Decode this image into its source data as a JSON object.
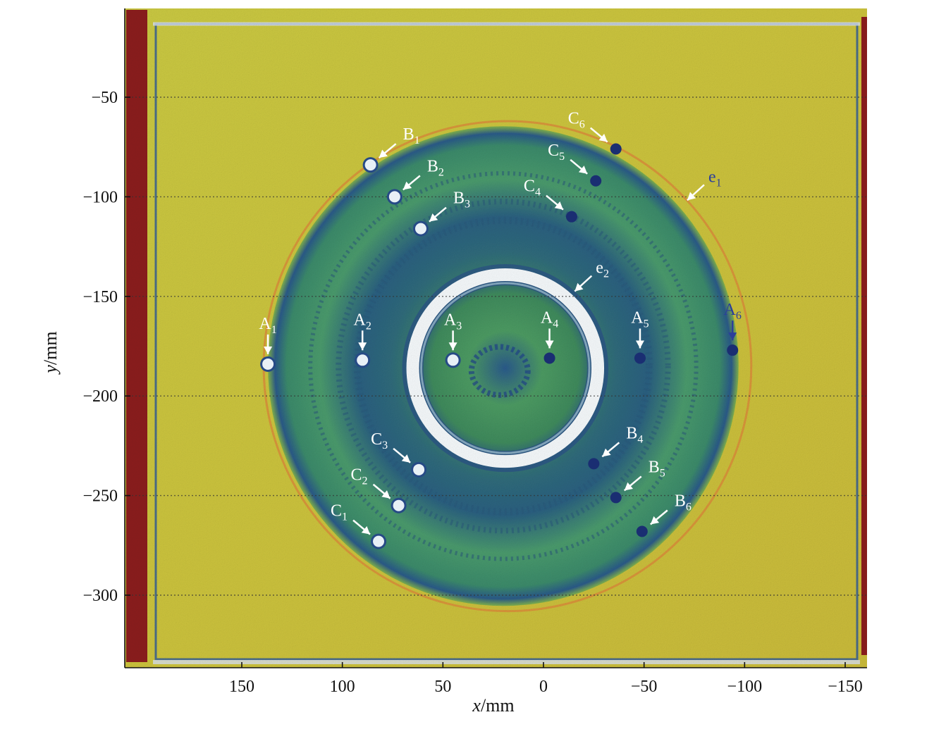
{
  "chart_data": {
    "type": "scatter",
    "title": "",
    "xlabel_var": "x",
    "xlabel_unit": "/mm",
    "ylabel_var": "y",
    "ylabel_unit": "/mm",
    "xlim": [
      200,
      -160
    ],
    "ylim": [
      -335,
      -5
    ],
    "x_reversed": true,
    "x_ticks": [
      150,
      100,
      50,
      0,
      -50,
      -100,
      -150
    ],
    "x_tick_labels": [
      "150",
      "100",
      "50",
      "0",
      "−50",
      "−100",
      "−150"
    ],
    "y_ticks": [
      -50,
      -100,
      -150,
      -200,
      -250,
      -300
    ],
    "y_tick_labels": [
      "−50",
      "−100",
      "−150",
      "−200",
      "−250",
      "−300"
    ],
    "horizontal_grid": true,
    "colors": {
      "background_field": "#c8c83c",
      "disc_outer": "#4a9a62",
      "disc_dark_band": "#2a5a7a",
      "ring_white": "#f4f8fa",
      "side_bar": "#8b1e1e",
      "edge_blue": "#1f4fa0",
      "annotation_white": "#ffffff",
      "annotation_blue": "#2b3f9a",
      "halo_orange": "#d98a3a"
    },
    "markers": [
      {
        "base": "A",
        "sub": "1",
        "x": 137,
        "y": -184,
        "label_dx": 0,
        "label_dy": -1,
        "style": "bright",
        "label_color": "white"
      },
      {
        "base": "A",
        "sub": "2",
        "x": 90,
        "y": -182,
        "label_dx": 0,
        "label_dy": -1,
        "style": "bright",
        "label_color": "white"
      },
      {
        "base": "A",
        "sub": "3",
        "x": 45,
        "y": -182,
        "label_dx": 0,
        "label_dy": -1,
        "style": "bright",
        "label_color": "white"
      },
      {
        "base": "A",
        "sub": "4",
        "x": -3,
        "y": -181,
        "label_dx": 0,
        "label_dy": -1,
        "style": "dark",
        "label_color": "white"
      },
      {
        "base": "A",
        "sub": "5",
        "x": -48,
        "y": -181,
        "label_dx": 0,
        "label_dy": -1,
        "style": "dark",
        "label_color": "white"
      },
      {
        "base": "A",
        "sub": "6",
        "x": -94,
        "y": -177,
        "label_dx": 0,
        "label_dy": -1,
        "style": "dark",
        "label_color": "blue"
      },
      {
        "base": "B",
        "sub": "1",
        "x": 86,
        "y": -84,
        "label_dx": 1,
        "label_dy": -1,
        "style": "bright",
        "label_color": "white"
      },
      {
        "base": "B",
        "sub": "2",
        "x": 74,
        "y": -100,
        "label_dx": 1,
        "label_dy": -1,
        "style": "bright",
        "label_color": "white"
      },
      {
        "base": "B",
        "sub": "3",
        "x": 61,
        "y": -116,
        "label_dx": 1,
        "label_dy": -1,
        "style": "bright",
        "label_color": "white"
      },
      {
        "base": "B",
        "sub": "4",
        "x": -25,
        "y": -234,
        "label_dx": 1,
        "label_dy": -1,
        "style": "dark",
        "label_color": "white"
      },
      {
        "base": "B",
        "sub": "5",
        "x": -36,
        "y": -251,
        "label_dx": 1,
        "label_dy": -1,
        "style": "dark",
        "label_color": "white"
      },
      {
        "base": "B",
        "sub": "6",
        "x": -49,
        "y": -268,
        "label_dx": 1,
        "label_dy": -1,
        "style": "dark",
        "label_color": "white"
      },
      {
        "base": "C",
        "sub": "1",
        "x": 82,
        "y": -273,
        "label_dx": -1,
        "label_dy": -1,
        "style": "bright",
        "label_color": "white"
      },
      {
        "base": "C",
        "sub": "2",
        "x": 72,
        "y": -255,
        "label_dx": -1,
        "label_dy": -1,
        "style": "bright",
        "label_color": "white"
      },
      {
        "base": "C",
        "sub": "3",
        "x": 62,
        "y": -237,
        "label_dx": -1,
        "label_dy": -1,
        "style": "bright",
        "label_color": "white"
      },
      {
        "base": "C",
        "sub": "4",
        "x": -14,
        "y": -110,
        "label_dx": -1,
        "label_dy": -1,
        "style": "dark",
        "label_color": "white"
      },
      {
        "base": "C",
        "sub": "5",
        "x": -26,
        "y": -92,
        "label_dx": -1,
        "label_dy": -1,
        "style": "dark",
        "label_color": "white"
      },
      {
        "base": "C",
        "sub": "6",
        "x": -36,
        "y": -76,
        "label_dx": -1,
        "label_dy": -1,
        "style": "dark",
        "label_color": "white"
      }
    ],
    "circles": [
      {
        "name": "e",
        "sub": "1",
        "cx": 20,
        "cy": -185,
        "r": 117,
        "label_angle_deg": 48,
        "label_color": "blue"
      },
      {
        "name": "e",
        "sub": "2",
        "cx": 19,
        "cy": -186,
        "r": 46,
        "label_angle_deg": 42,
        "label_color": "white"
      }
    ]
  }
}
